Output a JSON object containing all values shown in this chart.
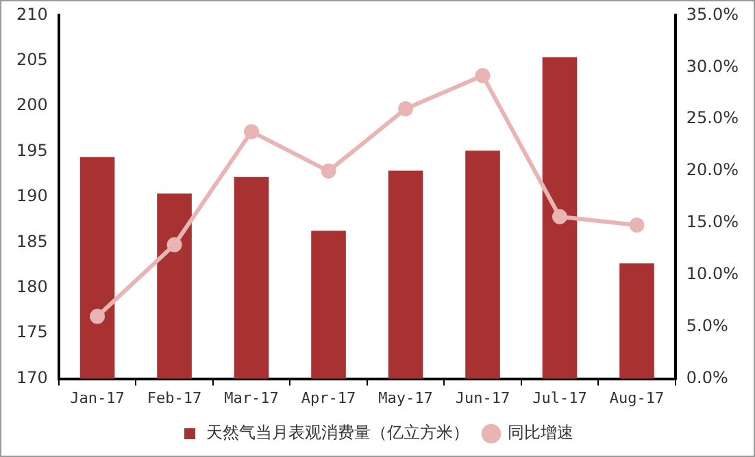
{
  "chart_data": {
    "type": "bar",
    "categories": [
      "Jan-17",
      "Feb-17",
      "Mar-17",
      "Apr-17",
      "May-17",
      "Jun-17",
      "Jul-17",
      "Aug-17"
    ],
    "series": [
      {
        "name": "天然气当月表观消费量（亿立方米）",
        "color": "#a83232",
        "values": [
          194.4,
          190.4,
          192.2,
          186.3,
          192.9,
          195.1,
          205.4,
          182.7
        ]
      },
      {
        "name": "同比增速",
        "type": "line",
        "axis": "y2",
        "color": "#e8b4b4",
        "values": [
          6.0,
          12.9,
          23.8,
          20.0,
          26.0,
          29.2,
          15.6,
          14.8
        ]
      }
    ],
    "ylim": [
      170,
      210
    ],
    "yticks": [
      170,
      175,
      180,
      185,
      190,
      195,
      200,
      205,
      210
    ],
    "y2lim": [
      0,
      35
    ],
    "y2ticks": [
      {
        "value": 0,
        "label": "0.0%"
      },
      {
        "value": 5,
        "label": "5.0%"
      },
      {
        "value": 10,
        "label": "10.0%"
      },
      {
        "value": 15,
        "label": "15.0%"
      },
      {
        "value": 20,
        "label": "20.0%"
      },
      {
        "value": 25,
        "label": "25.0%"
      },
      {
        "value": 30,
        "label": "30.0%"
      },
      {
        "value": 35,
        "label": "35.0%"
      }
    ],
    "grid": false,
    "legend": "bottom",
    "marker": "circle"
  }
}
